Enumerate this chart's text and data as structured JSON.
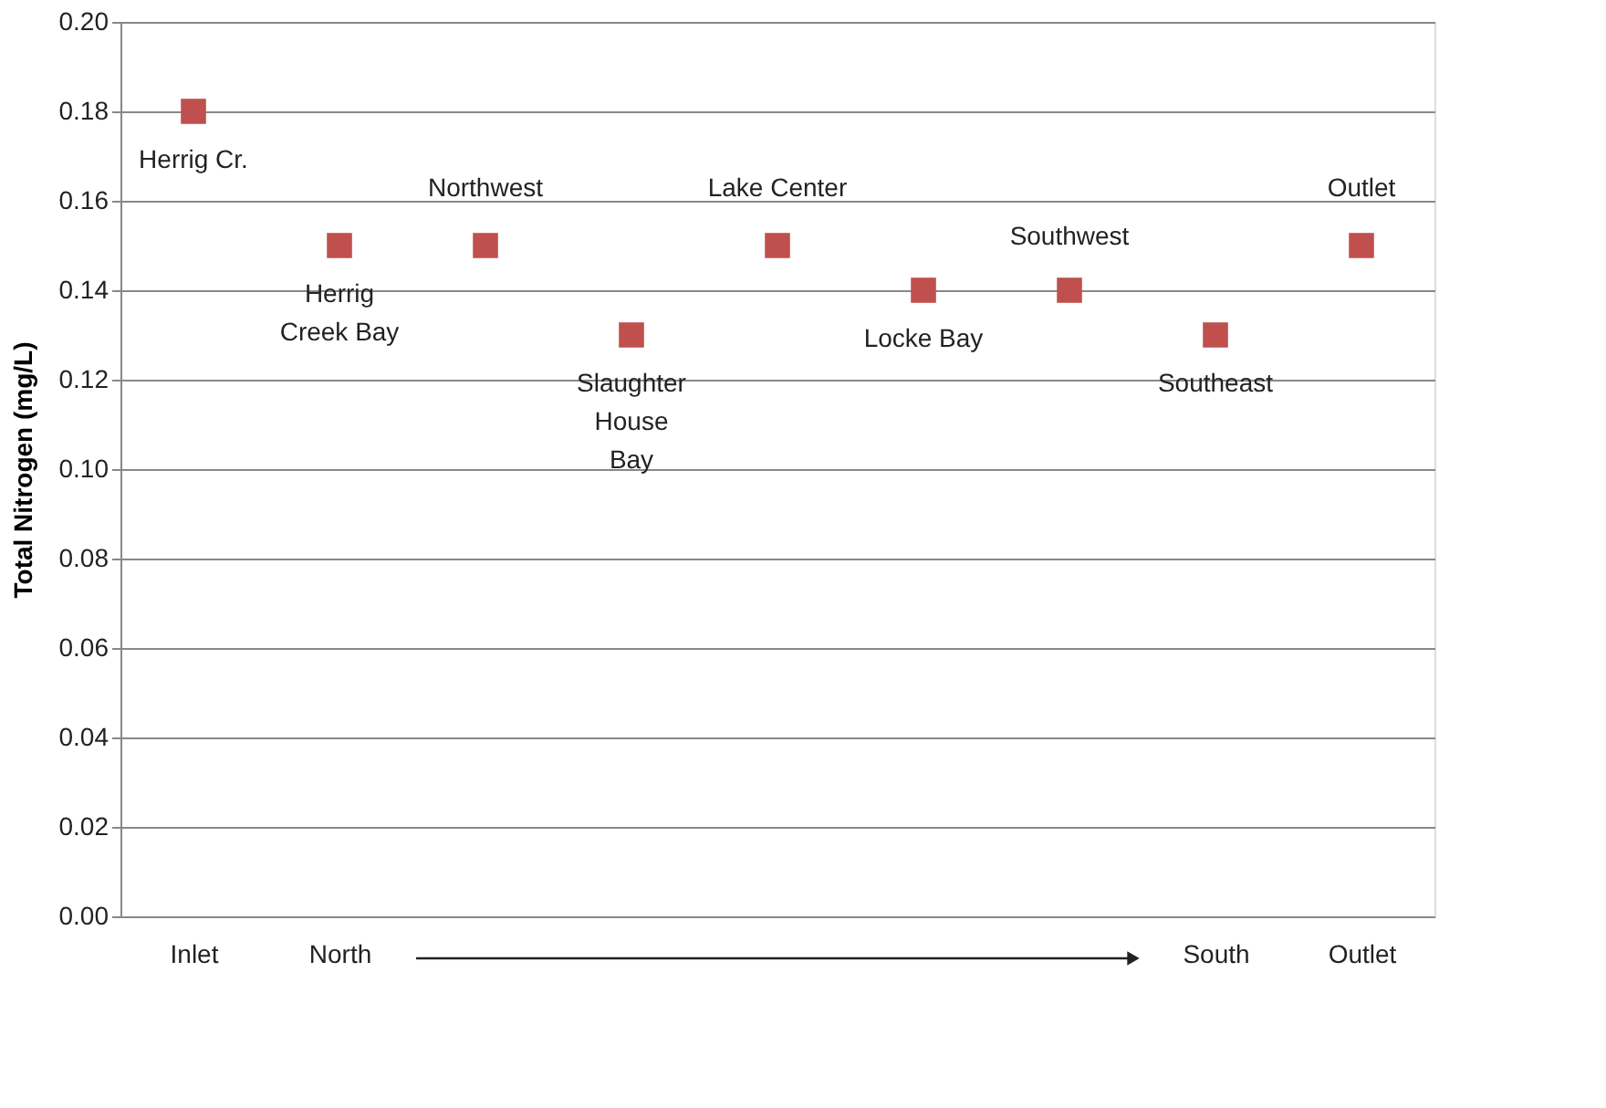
{
  "chart_data": {
    "type": "scatter",
    "ylabel": "Total Nitrogen (mg/L)",
    "categories": [
      "Inlet",
      "North",
      null,
      null,
      null,
      null,
      null,
      "South",
      "Outlet"
    ],
    "series": [
      {
        "color": "#c0504d",
        "values": [
          0.18,
          0.15,
          0.15,
          0.13,
          0.15,
          0.14,
          0.14,
          0.13,
          0.15
        ]
      }
    ],
    "ylim": [
      0,
      0.2
    ],
    "yticks": [
      {
        "value": 0,
        "label": "0.00"
      },
      {
        "value": 0.02,
        "label": "0.02"
      },
      {
        "value": 0.04,
        "label": "0.04"
      },
      {
        "value": 0.06,
        "label": "0.06"
      },
      {
        "value": 0.08,
        "label": "0.08"
      },
      {
        "value": 0.1,
        "label": "0.10"
      },
      {
        "value": 0.12,
        "label": "0.12"
      },
      {
        "value": 0.14,
        "label": "0.14"
      },
      {
        "value": 0.16,
        "label": "0.16"
      },
      {
        "value": 0.18,
        "label": "0.18"
      },
      {
        "value": 0.2,
        "label": "0.20"
      }
    ],
    "annotations": [
      {
        "text": "Herrig Cr.",
        "x": "Inlet",
        "y": 0.18
      },
      {
        "text": "Herrig\nCreek Bay",
        "x": "North",
        "y": 0.15
      },
      {
        "text": "Northwest",
        "y": 0.15
      },
      {
        "text": "Slaughter\nHouse\nBay",
        "y": 0.13
      },
      {
        "text": "Lake Center",
        "y": 0.15
      },
      {
        "text": "Locke Bay",
        "y": 0.14
      },
      {
        "text": "Southwest",
        "y": 0.14
      },
      {
        "text": "Southeast",
        "x": "South",
        "y": 0.13
      },
      {
        "text": "Outlet",
        "x": "Outlet",
        "y": 0.15
      }
    ],
    "grid": "y",
    "marker": "square"
  }
}
